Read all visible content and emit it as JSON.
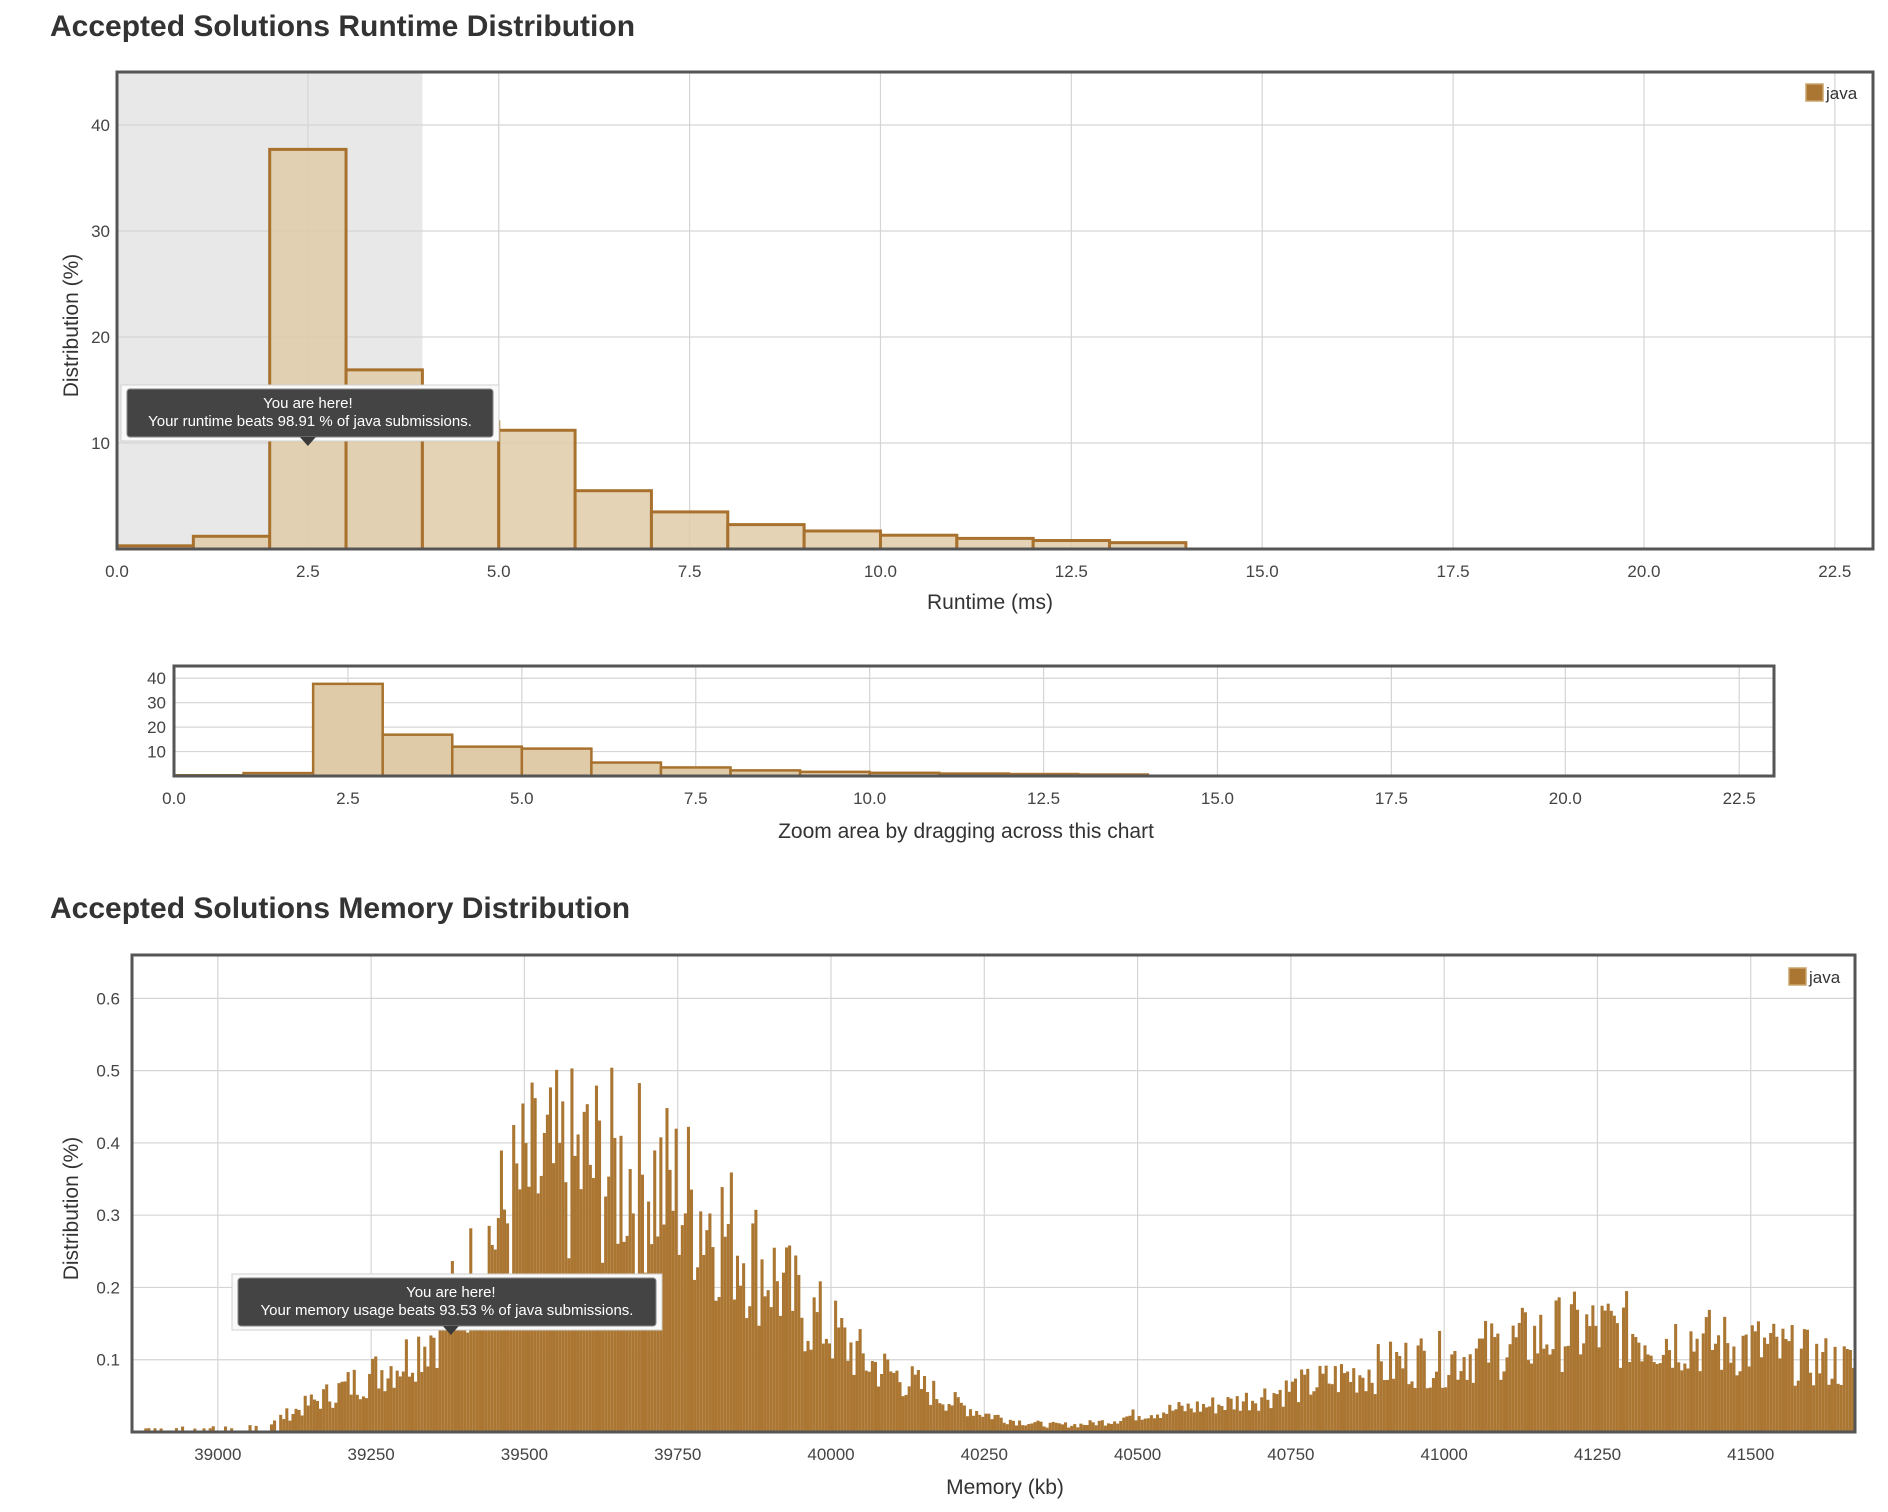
{
  "runtime_section": {
    "title": "Accepted Solutions Runtime Distribution"
  },
  "memory_section": {
    "title": "Accepted Solutions Memory Distribution"
  },
  "colors": {
    "bar_stroke": "#a8722e",
    "bar_fill": "#e0cba9",
    "mem_fill": "#ab7632",
    "selection": "#e8e8e8",
    "frame": "#555555",
    "grid": "#d5d5d5",
    "tooltip_bg": "#3a3a3a"
  },
  "chart_data": [
    {
      "id": "runtime",
      "type": "bar",
      "bin_width": 1,
      "bins_start": [
        0,
        1,
        2,
        3,
        4,
        5,
        6,
        7,
        8,
        9,
        10,
        11,
        12,
        13
      ],
      "series": [
        {
          "name": "java",
          "values": [
            0.3,
            1.2,
            37.7,
            16.9,
            12.0,
            11.2,
            5.5,
            3.5,
            2.3,
            1.7,
            1.3,
            1.0,
            0.8,
            0.6
          ]
        }
      ],
      "xlim": [
        0,
        23
      ],
      "ylim": [
        0,
        45
      ],
      "xticks": [
        "0.0",
        "2.5",
        "5.0",
        "7.5",
        "10.0",
        "12.5",
        "15.0",
        "17.5",
        "20.0",
        "22.5"
      ],
      "yticks": [
        "10",
        "20",
        "30",
        "40"
      ],
      "xlabel": "Runtime (ms)",
      "ylabel": "Distribution (%)",
      "legend": [
        "java"
      ],
      "legend_position": "top-right",
      "highlight_range": [
        0,
        4
      ],
      "tooltip": {
        "line1": "You are here!",
        "line2": "Your runtime beats 98.91 % of java submissions.",
        "at_x": 2.5
      }
    },
    {
      "id": "navigator",
      "type": "bar",
      "bin_width": 1,
      "bins_start": [
        0,
        1,
        2,
        3,
        4,
        5,
        6,
        7,
        8,
        9,
        10,
        11,
        12,
        13
      ],
      "series": [
        {
          "name": "java",
          "values": [
            0.3,
            1.2,
            37.7,
            16.9,
            12.0,
            11.2,
            5.5,
            3.5,
            2.3,
            1.7,
            1.3,
            1.0,
            0.8,
            0.6
          ]
        }
      ],
      "xlim": [
        0,
        23
      ],
      "ylim": [
        0,
        45
      ],
      "xticks": [
        "0.0",
        "2.5",
        "5.0",
        "7.5",
        "10.0",
        "12.5",
        "15.0",
        "17.5",
        "20.0",
        "22.5"
      ],
      "yticks": [
        "10",
        "20",
        "30",
        "40"
      ],
      "xlabel": "Zoom area by dragging across this chart"
    },
    {
      "id": "memory",
      "type": "bar",
      "bin_width": 5,
      "x_range": [
        38880,
        41670
      ],
      "series": [
        {
          "name": "java",
          "envelope_x": [
            38880,
            39000,
            39050,
            39100,
            39150,
            39200,
            39250,
            39300,
            39350,
            39400,
            39450,
            39500,
            39550,
            39600,
            39650,
            39700,
            39750,
            39800,
            39850,
            39900,
            39950,
            40000,
            40050,
            40100,
            40150,
            40200,
            40250,
            40300,
            40350,
            40400,
            40450,
            40500,
            40550,
            40600,
            40650,
            40700,
            40750,
            40800,
            40850,
            40900,
            40950,
            41000,
            41050,
            41100,
            41150,
            41200,
            41250,
            41300,
            41350,
            41400,
            41450,
            41500,
            41550,
            41600,
            41670
          ],
          "envelope_y": [
            0.005,
            0.006,
            0.01,
            0.02,
            0.04,
            0.06,
            0.08,
            0.1,
            0.14,
            0.2,
            0.28,
            0.35,
            0.36,
            0.37,
            0.36,
            0.35,
            0.33,
            0.3,
            0.26,
            0.22,
            0.17,
            0.14,
            0.1,
            0.08,
            0.06,
            0.04,
            0.025,
            0.015,
            0.01,
            0.01,
            0.015,
            0.025,
            0.03,
            0.035,
            0.04,
            0.05,
            0.06,
            0.07,
            0.08,
            0.09,
            0.1,
            0.1,
            0.11,
            0.12,
            0.13,
            0.14,
            0.14,
            0.14,
            0.13,
            0.13,
            0.12,
            0.12,
            0.11,
            0.1,
            0.09
          ]
        }
      ],
      "xlim": [
        38860,
        41670
      ],
      "ylim": [
        0,
        0.66
      ],
      "xticks": [
        "39000",
        "39250",
        "39500",
        "39750",
        "40000",
        "40250",
        "40500",
        "40750",
        "41000",
        "41250",
        "41500"
      ],
      "yticks": [
        "0.1",
        "0.2",
        "0.3",
        "0.4",
        "0.5",
        "0.6"
      ],
      "xlabel": "Memory (kb)",
      "ylabel": "Distribution (%)",
      "legend": [
        "java"
      ],
      "legend_position": "top-right",
      "tooltip": {
        "line1": "You are here!",
        "line2": "Your memory usage beats 93.53 % of java submissions.",
        "at_x": 39380
      }
    }
  ]
}
